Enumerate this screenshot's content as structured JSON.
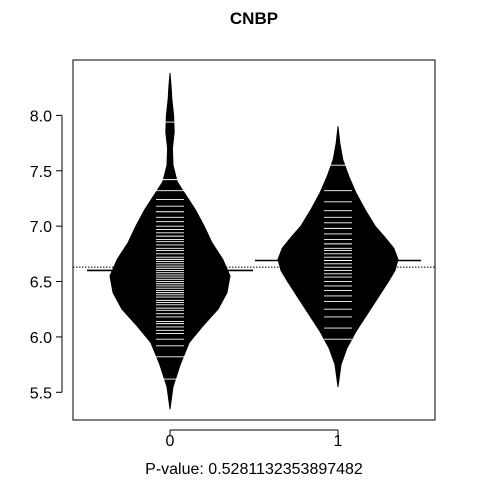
{
  "chart_data": {
    "type": "beanplot",
    "title": "CNBP",
    "xlabel": "P-value: 0.5281132353897482",
    "ylabel": "",
    "ylim": [
      5.25,
      8.5
    ],
    "yticks": [
      5.5,
      6.0,
      6.5,
      7.0,
      7.5,
      8.0
    ],
    "ytick_labels": [
      "5.5",
      "6.0",
      "6.5",
      "7.0",
      "7.5",
      "8.0"
    ],
    "overall_mean": 6.63,
    "colors": {
      "bean_fill": "#000000",
      "data_lines": "#ffffff",
      "axis": "#000000",
      "background": "#ffffff"
    },
    "beans": [
      {
        "label": "0",
        "mean": 6.6,
        "density": [
          [
            5.35,
            0.0
          ],
          [
            5.55,
            0.05
          ],
          [
            5.75,
            0.17
          ],
          [
            5.95,
            0.32
          ],
          [
            6.1,
            0.55
          ],
          [
            6.25,
            0.8
          ],
          [
            6.4,
            0.95
          ],
          [
            6.55,
            1.0
          ],
          [
            6.7,
            0.88
          ],
          [
            6.85,
            0.7
          ],
          [
            7.0,
            0.57
          ],
          [
            7.15,
            0.42
          ],
          [
            7.3,
            0.24
          ],
          [
            7.4,
            0.12
          ],
          [
            7.55,
            0.05
          ],
          [
            7.7,
            0.04
          ],
          [
            7.85,
            0.07
          ],
          [
            8.0,
            0.06
          ],
          [
            8.15,
            0.03
          ],
          [
            8.25,
            0.02
          ],
          [
            8.38,
            0.0
          ]
        ],
        "points": [
          5.62,
          5.82,
          5.92,
          5.98,
          6.03,
          6.06,
          6.09,
          6.12,
          6.14,
          6.18,
          6.21,
          6.24,
          6.26,
          6.29,
          6.31,
          6.33,
          6.36,
          6.38,
          6.4,
          6.42,
          6.44,
          6.46,
          6.48,
          6.5,
          6.52,
          6.54,
          6.56,
          6.58,
          6.6,
          6.62,
          6.64,
          6.66,
          6.68,
          6.7,
          6.72,
          6.75,
          6.78,
          6.8,
          6.83,
          6.86,
          6.88,
          6.91,
          6.94,
          6.97,
          7.0,
          7.04,
          7.08,
          7.13,
          7.18,
          7.24,
          7.32,
          7.42,
          7.94
        ]
      },
      {
        "label": "1",
        "mean": 6.69,
        "density": [
          [
            5.55,
            0.0
          ],
          [
            5.75,
            0.05
          ],
          [
            5.9,
            0.15
          ],
          [
            6.05,
            0.3
          ],
          [
            6.2,
            0.48
          ],
          [
            6.35,
            0.66
          ],
          [
            6.5,
            0.84
          ],
          [
            6.6,
            0.95
          ],
          [
            6.7,
            1.0
          ],
          [
            6.8,
            0.93
          ],
          [
            6.9,
            0.78
          ],
          [
            7.0,
            0.62
          ],
          [
            7.15,
            0.45
          ],
          [
            7.3,
            0.3
          ],
          [
            7.45,
            0.18
          ],
          [
            7.6,
            0.08
          ],
          [
            7.75,
            0.03
          ],
          [
            7.9,
            0.0
          ]
        ],
        "points": [
          5.98,
          6.08,
          6.18,
          6.25,
          6.32,
          6.37,
          6.42,
          6.46,
          6.5,
          6.54,
          6.57,
          6.6,
          6.63,
          6.66,
          6.69,
          6.72,
          6.75,
          6.78,
          6.8,
          6.84,
          6.88,
          6.93,
          6.98,
          7.03,
          7.08,
          7.14,
          7.22,
          7.32,
          7.55
        ]
      }
    ]
  }
}
